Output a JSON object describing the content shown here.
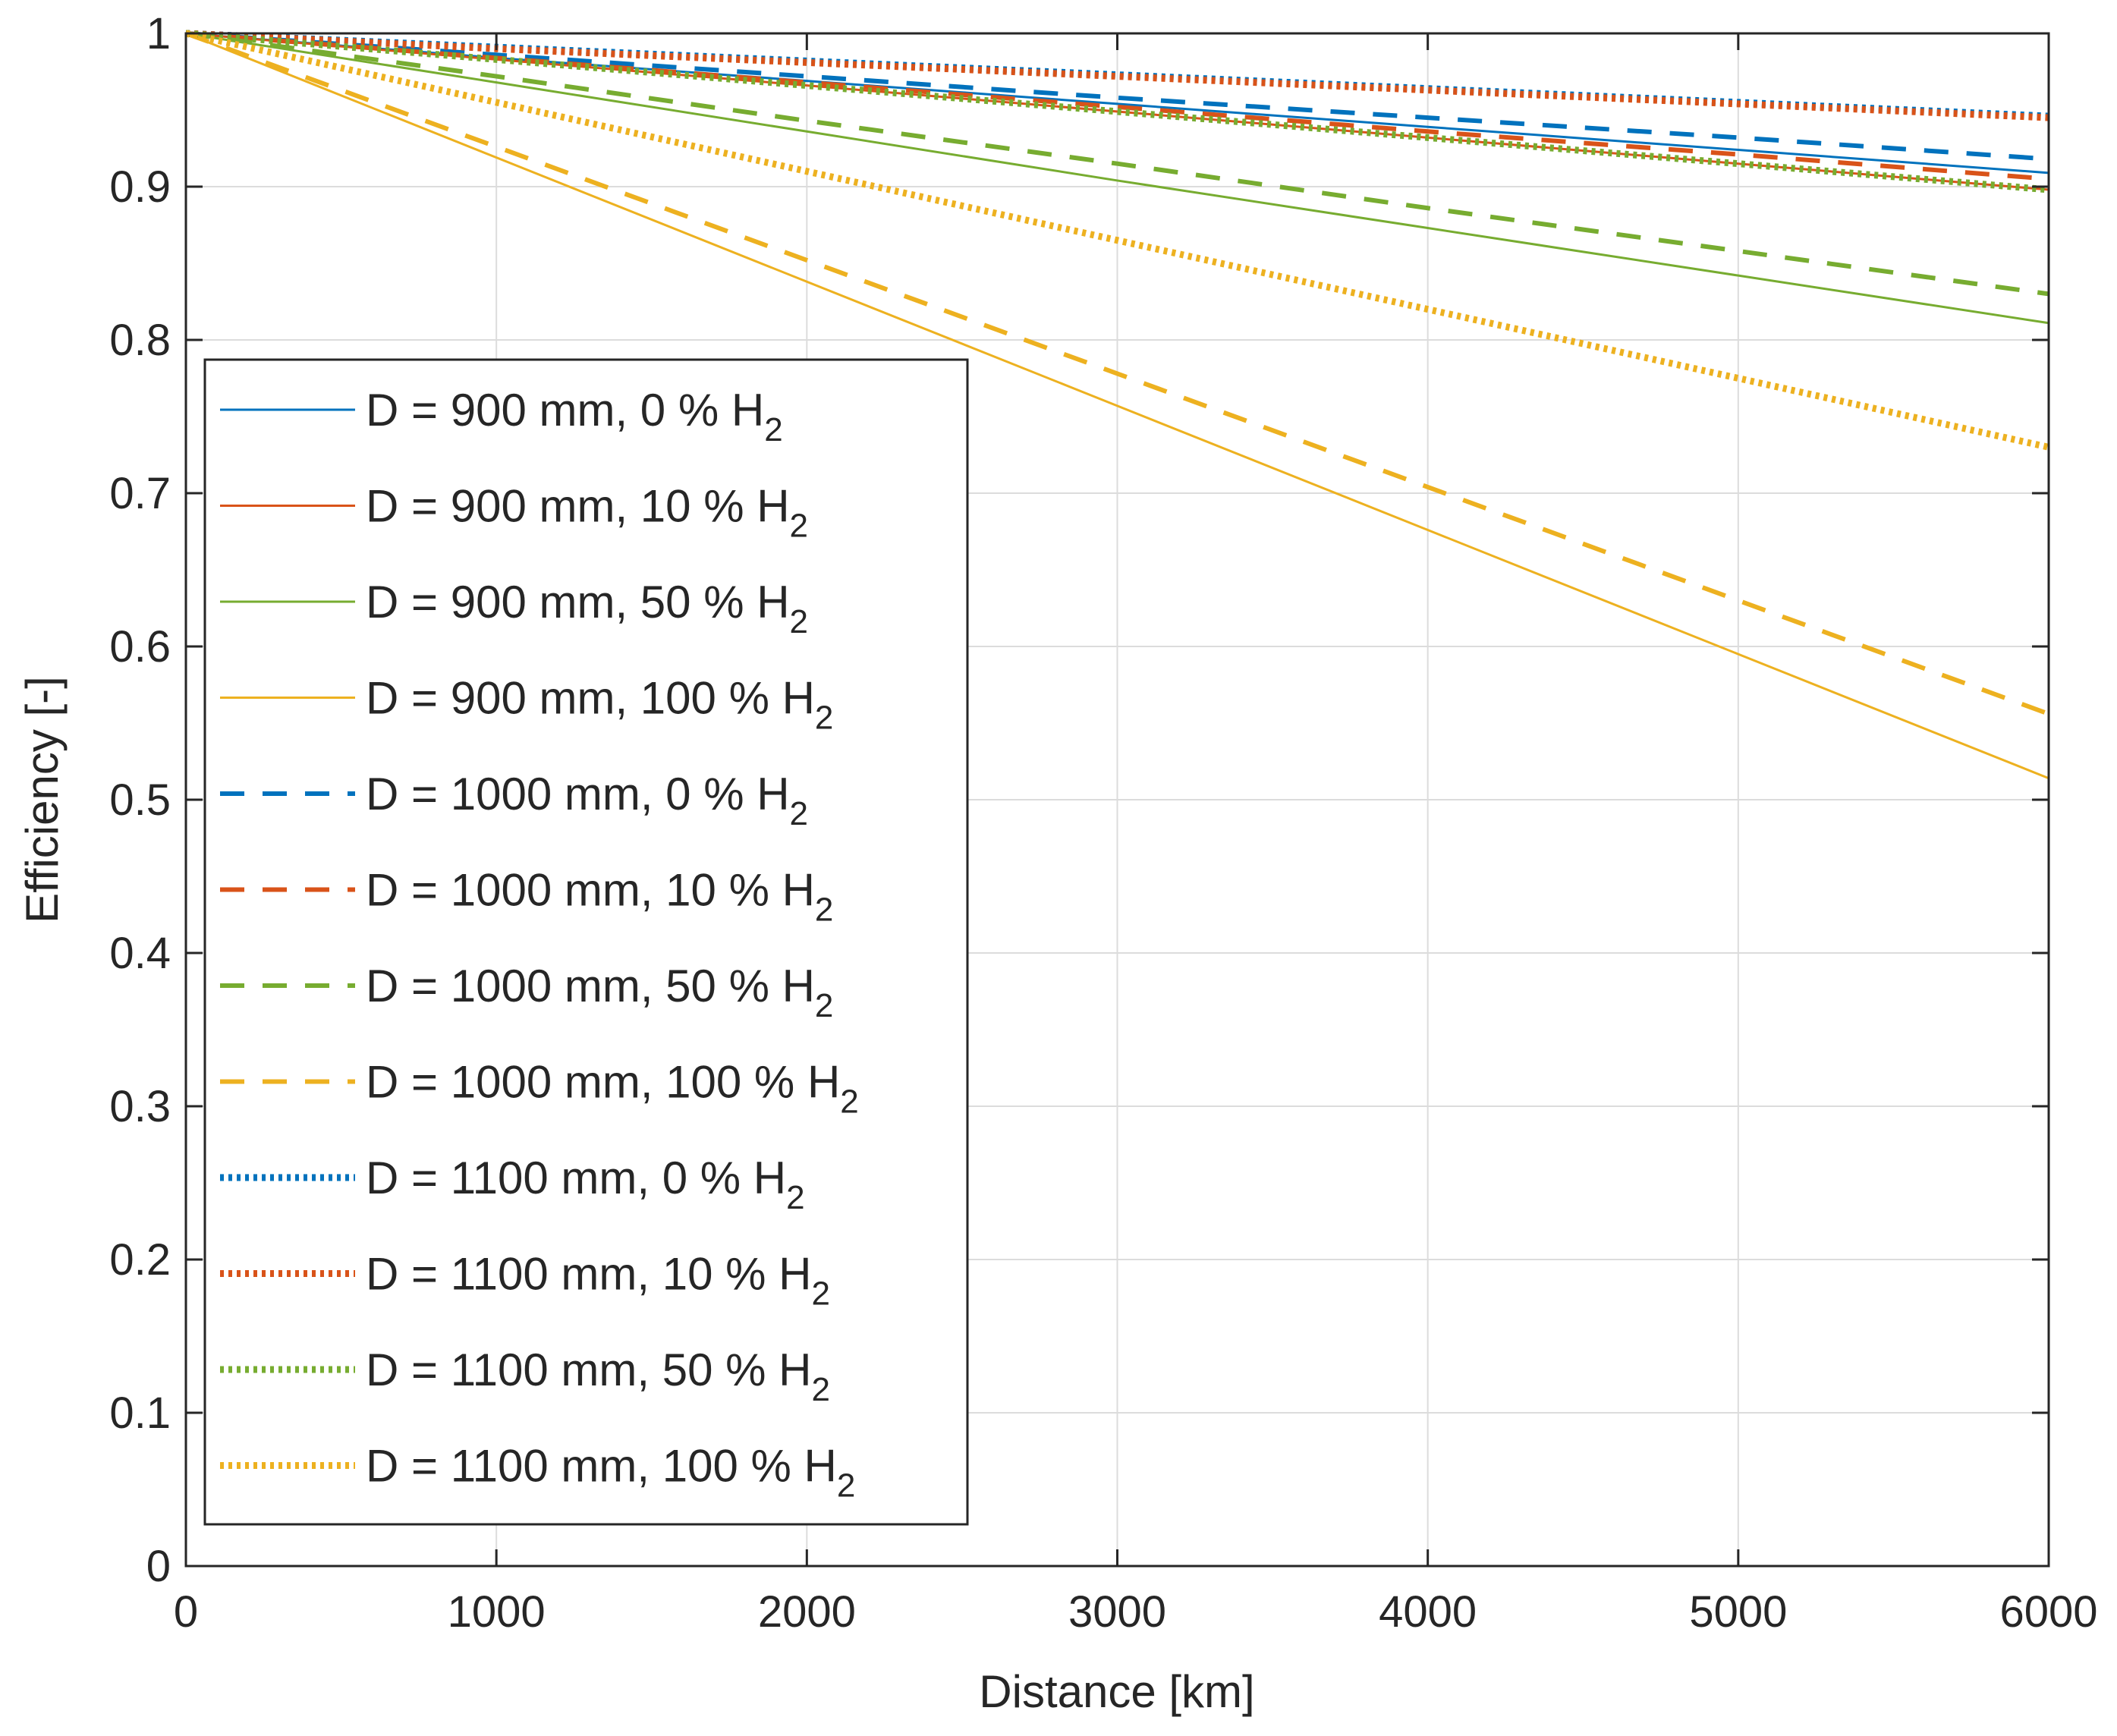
{
  "chart_data": {
    "type": "line",
    "title": "",
    "xlabel": "Distance [km]",
    "ylabel": "Efficiency [-]",
    "xlim": [
      0,
      6000
    ],
    "ylim": [
      0,
      1
    ],
    "grid": true,
    "legend_position": "left",
    "x_ticks": [
      "0",
      "1000",
      "2000",
      "3000",
      "4000",
      "5000",
      "6000"
    ],
    "y_ticks": [
      "0",
      "0.1",
      "0.2",
      "0.3",
      "0.4",
      "0.5",
      "0.6",
      "0.7",
      "0.8",
      "0.9",
      "1"
    ],
    "x": [
      0,
      1000,
      2000,
      3000,
      4000,
      5000,
      6000
    ],
    "series": [
      {
        "name": "D = 900 mm, 0 % H",
        "sub": "2",
        "color": "#0072BD",
        "style": "solid",
        "values": [
          1,
          0.984,
          0.969,
          0.954,
          0.939,
          0.924,
          0.909
        ]
      },
      {
        "name": "D = 900 mm, 10 % H",
        "sub": "2",
        "color": "#D95319",
        "style": "solid",
        "values": [
          1,
          0.983,
          0.966,
          0.949,
          0.932,
          0.915,
          0.898
        ]
      },
      {
        "name": "D = 900 mm, 50 % H",
        "sub": "2",
        "color": "#77AC30",
        "style": "solid",
        "values": [
          1,
          0.968,
          0.936,
          0.904,
          0.873,
          0.842,
          0.811
        ]
      },
      {
        "name": "D = 900 mm, 100 % H",
        "sub": "2",
        "color": "#EDB120",
        "style": "solid",
        "values": [
          1,
          0.919,
          0.838,
          0.757,
          0.676,
          0.595,
          0.514
        ]
      },
      {
        "name": "D = 1000 mm, 0 % H",
        "sub": "2",
        "color": "#0072BD",
        "style": "dashed",
        "values": [
          1,
          0.986,
          0.972,
          0.958,
          0.945,
          0.932,
          0.918
        ]
      },
      {
        "name": "D = 1000 mm, 10 % H",
        "sub": "2",
        "color": "#D95319",
        "style": "dashed",
        "values": [
          1,
          0.984,
          0.968,
          0.952,
          0.936,
          0.921,
          0.905
        ]
      },
      {
        "name": "D = 1000 mm, 50 % H",
        "sub": "2",
        "color": "#77AC30",
        "style": "dashed",
        "values": [
          1,
          0.972,
          0.943,
          0.915,
          0.886,
          0.858,
          0.83
        ]
      },
      {
        "name": "D = 1000 mm, 100 % H",
        "sub": "2",
        "color": "#EDB120",
        "style": "dashed",
        "values": [
          1,
          0.926,
          0.852,
          0.778,
          0.704,
          0.63,
          0.556
        ]
      },
      {
        "name": "D = 1100 mm, 0 % H",
        "sub": "2",
        "color": "#0072BD",
        "style": "dotted",
        "values": [
          1,
          0.991,
          0.982,
          0.973,
          0.964,
          0.955,
          0.946
        ]
      },
      {
        "name": "D = 1100 mm, 10 % H",
        "sub": "2",
        "color": "#D95319",
        "style": "dotted",
        "values": [
          1,
          0.99,
          0.981,
          0.972,
          0.963,
          0.954,
          0.945
        ]
      },
      {
        "name": "D = 1100 mm, 50 % H",
        "sub": "2",
        "color": "#77AC30",
        "style": "dotted",
        "values": [
          1,
          0.983,
          0.966,
          0.949,
          0.932,
          0.915,
          0.898
        ]
      },
      {
        "name": "D = 1100 mm, 100 % H",
        "sub": "2",
        "color": "#EDB120",
        "style": "dotted",
        "values": [
          1,
          0.955,
          0.91,
          0.865,
          0.82,
          0.775,
          0.73
        ]
      }
    ]
  }
}
